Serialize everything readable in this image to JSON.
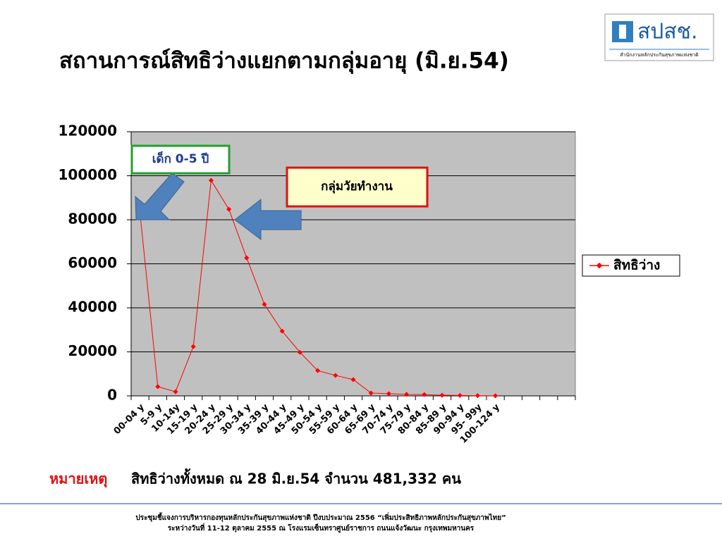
{
  "header": {
    "title": "สถานการณ์สิทธิว่างแยกตามกลุ่มอายุ (มิ.ย.54)",
    "logo_text": "สปสช.",
    "logo_subtext": "สำนักงานหลักประกันสุขภาพแห่งชาติ"
  },
  "chart_data": {
    "type": "line",
    "categories": [
      "00-04 y",
      "5-9 y",
      "10-14y",
      "15-19 y",
      "20-24 y",
      "25-29 y",
      "30-34 y",
      "35-39 y",
      "40-44 y",
      "45-49 y",
      "50-54 y",
      "55-59 y",
      "60-64 y",
      "65-69 y",
      "70-74 y",
      "75-79 y",
      "80-84 y",
      "85-89 y",
      "90-94 y",
      "95- 99y",
      "100-124 y",
      null,
      null,
      null,
      null
    ],
    "series": [
      {
        "name": "สิทธิว่าง",
        "color": "#ff0000",
        "values": [
          83000,
          4200,
          1900,
          22400,
          97900,
          84800,
          62700,
          41600,
          29400,
          19800,
          11500,
          9300,
          7400,
          1300,
          1000,
          700,
          600,
          300,
          200,
          100,
          50,
          null,
          null,
          null,
          null
        ]
      }
    ],
    "ylim": [
      0,
      120000
    ],
    "yticks": [
      0,
      20000,
      40000,
      60000,
      80000,
      100000,
      120000
    ],
    "grid": true,
    "plot_background": "#c0c0c0",
    "annotations": [
      "เด็ก 0-5 ปี",
      "กลุ่มวัยทำงาน"
    ]
  },
  "note": {
    "label": "หมายเหตุ",
    "text": "สิทธิว่างทั้งหมด ณ 28 มิ.ย.54  จำนวน  481,332 คน"
  },
  "footer": {
    "lines": [
      "ประชุมชี้แจงการบริหารกองทุนหลักประกันสุขภาพแห่งชาติ  ปีงบประมาณ 2556 “เพิ่มประสิทธิภาพหลักประกันสุขภาพไทย”",
      "ระหว่างวันที่ 11-12 ตุลาคม 2555 ณ โรงแรมเซ็นทราศูนย์ราชการ ถนนแจ้งวัฒนะ กรุงเทพมหานคร"
    ]
  }
}
